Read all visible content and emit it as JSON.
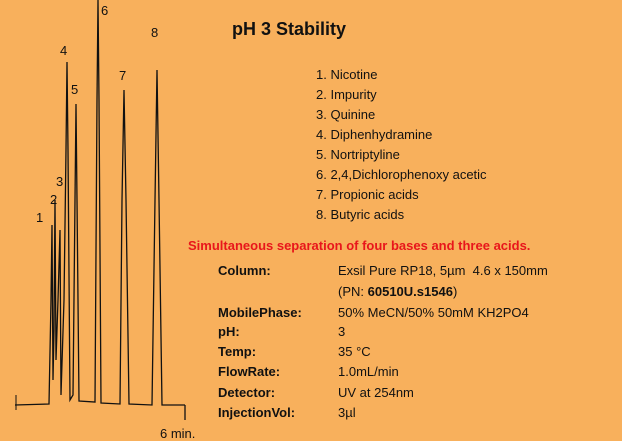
{
  "header": {
    "title": "pH 3 Stability"
  },
  "peaks": [
    "1",
    "2",
    "3",
    "4",
    "5",
    "6",
    "7",
    "8"
  ],
  "compounds": [
    "1. Nicotine",
    "2. Impurity",
    "3. Quinine",
    "4. Diphenhydramine",
    "5. Nortriptyline",
    "6. 2,4,Dichlorophenoxy acetic",
    "7. Propionic acids",
    "8. Butyric acids"
  ],
  "subtitle": "Simultaneous separation of four bases and three acids.",
  "conditions": [
    {
      "label": "Column:",
      "value": "Exsil Pure RP18, 5µm  4.6 x 150mm"
    },
    {
      "label": "MobilePhase:",
      "value": "50% MeCN/50% 50mM KH2PO4"
    },
    {
      "label": "pH:",
      "value": "3"
    },
    {
      "label": "Temp:",
      "value": "35 °C"
    },
    {
      "label": "FlowRate:",
      "value": "1.0mL/min"
    },
    {
      "label": "Detector:",
      "value": "UV at 254nm"
    },
    {
      "label": "InjectionVol:",
      "value": "3µl"
    }
  ],
  "part_number": {
    "prefix": "(PN: ",
    "code": "60510U.s1546",
    "suffix": ")"
  },
  "axis_label": "6 min."
}
